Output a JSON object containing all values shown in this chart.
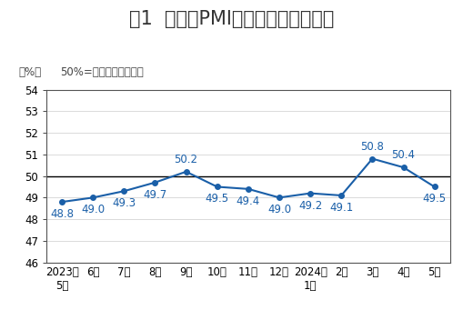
{
  "title": "图1  制造业PMI指数（经季节调整）",
  "subtitle_left": "（%）",
  "subtitle_right": "50%=与上月比较无变化",
  "x_labels": [
    "2023年\n5月",
    "6月",
    "7月",
    "8月",
    "9月",
    "10月",
    "11月",
    "12月",
    "2024年\n1月",
    "2月",
    "3月",
    "4月",
    "5月"
  ],
  "values": [
    48.8,
    49.0,
    49.3,
    49.7,
    50.2,
    49.5,
    49.4,
    49.0,
    49.2,
    49.1,
    50.8,
    50.4,
    49.5
  ],
  "ylim": [
    46,
    54
  ],
  "yticks": [
    46,
    47,
    48,
    49,
    50,
    51,
    52,
    53,
    54
  ],
  "hline_y": 50,
  "line_color": "#1a5fa8",
  "marker_color": "#1a5fa8",
  "label_color": "#1a5fa8",
  "hline_color": "#000000",
  "bg_color": "#ffffff",
  "plot_bg_color": "#ffffff",
  "title_color": "#333333",
  "title_fontsize": 15,
  "annotation_fontsize": 8.5,
  "axis_label_fontsize": 8.5,
  "subtitle_fontsize": 8.5,
  "label_above": [
    4,
    10,
    11
  ],
  "label_below": [
    0,
    1,
    2,
    3,
    5,
    6,
    7,
    8,
    9,
    12
  ]
}
